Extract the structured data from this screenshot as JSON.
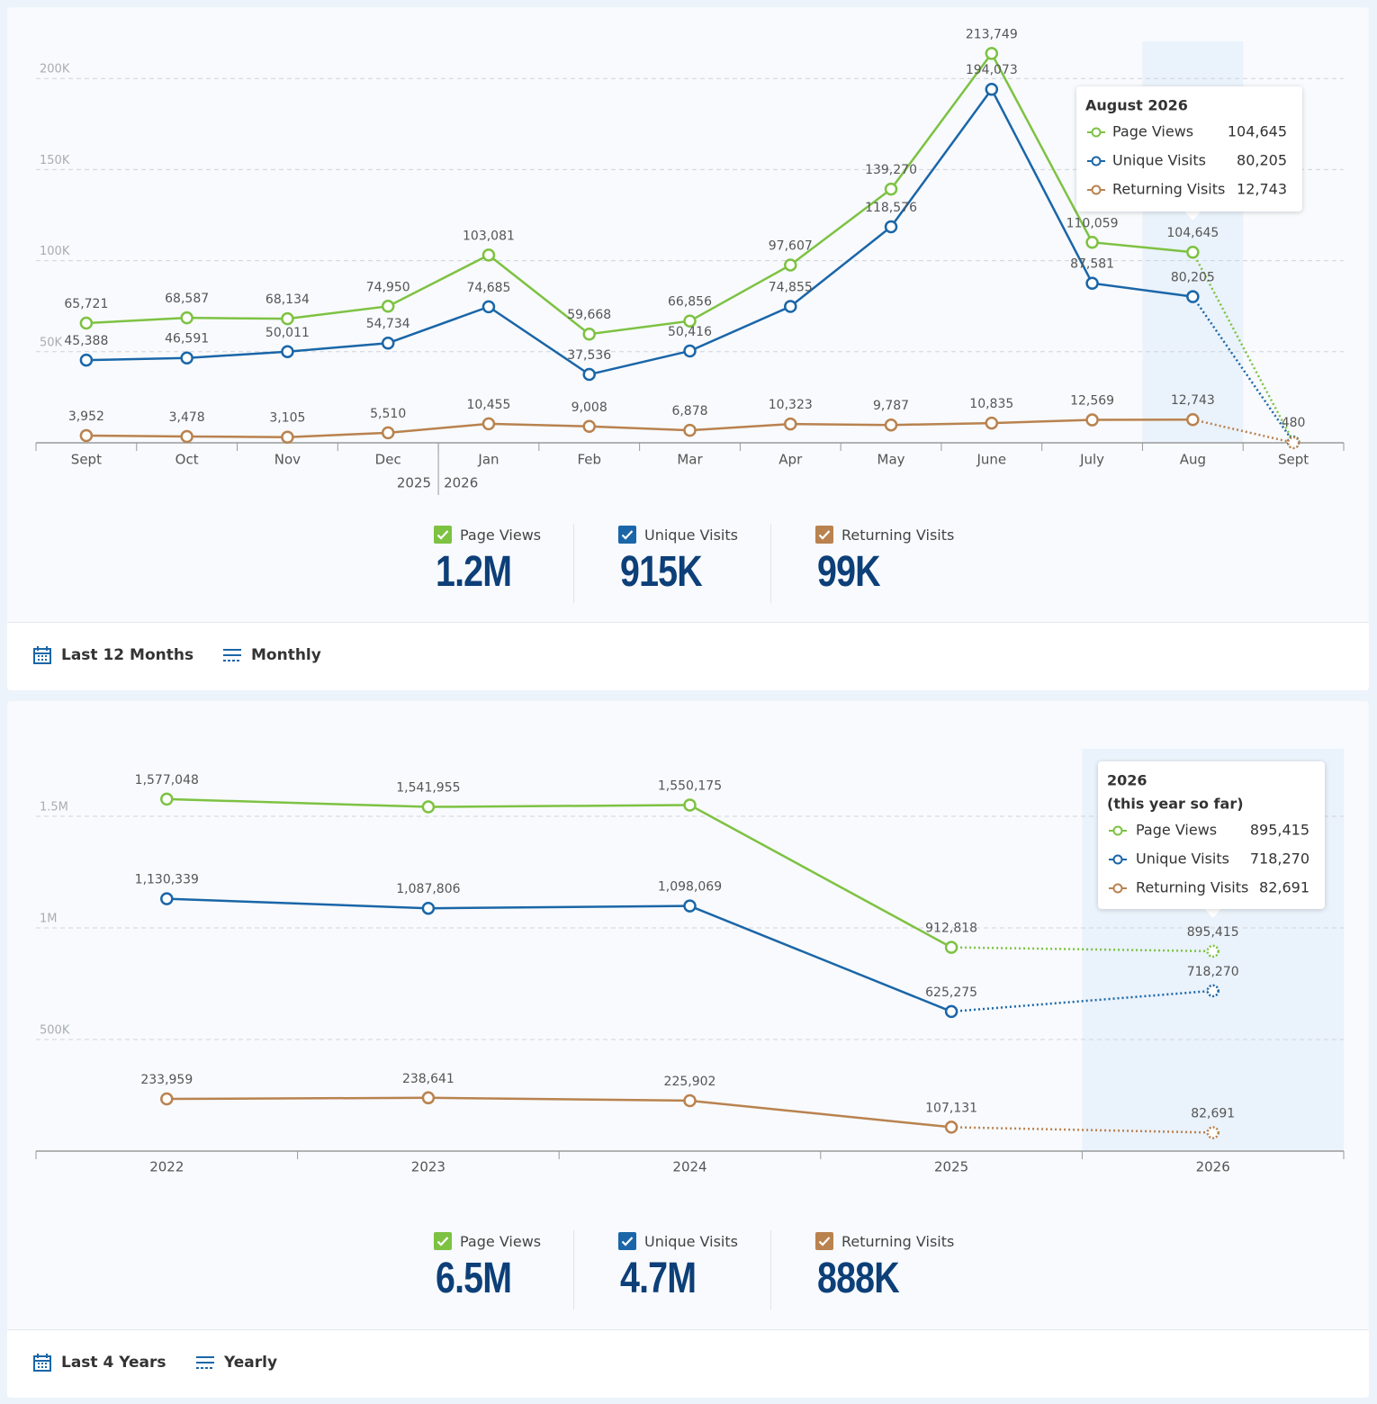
{
  "chart_data": [
    {
      "type": "line",
      "categories": [
        "Sept",
        "Oct",
        "Nov",
        "Dec",
        "Jan",
        "Feb",
        "Mar",
        "Apr",
        "May",
        "June",
        "July",
        "Aug",
        "Sept"
      ],
      "year_divider": {
        "before": "Jan",
        "labels": [
          "2025",
          "2026"
        ]
      },
      "series": [
        {
          "name": "Page Views",
          "color": "#7dc242",
          "values": [
            65721,
            68587,
            68134,
            74950,
            103081,
            59668,
            66856,
            97607,
            139270,
            213749,
            110059,
            104645,
            480
          ],
          "value_labels": [
            "65,721",
            "68,587",
            "68,134",
            "74,950",
            "103,081",
            "59,668",
            "66,856",
            "97,607",
            "139,270",
            "213,749",
            "110,059",
            "104,645",
            "480"
          ]
        },
        {
          "name": "Unique Visits",
          "color": "#1a66a8",
          "values": [
            45388,
            46591,
            50011,
            54734,
            74685,
            37536,
            50416,
            74855,
            118576,
            194073,
            87581,
            80205,
            380
          ],
          "value_labels": [
            "45,388",
            "46,591",
            "50,011",
            "54,734",
            "74,685",
            "37,536",
            "50,416",
            "74,855",
            "118,576",
            "194,073",
            "87,581",
            "80,205",
            null
          ]
        },
        {
          "name": "Returning Visits",
          "color": "#b9824f",
          "values": [
            3952,
            3478,
            3105,
            5510,
            10455,
            9008,
            6878,
            10323,
            9787,
            10835,
            12569,
            12743,
            60
          ],
          "value_labels": [
            "3,952",
            "3,478",
            "3,105",
            "5,510",
            "10,455",
            "9,008",
            "6,878",
            "10,323",
            "9,787",
            "10,835",
            "12,569",
            "12,743",
            null
          ]
        }
      ],
      "ylim": [
        0,
        230000
      ],
      "yticks": [
        {
          "value": 50000,
          "label": "50K"
        },
        {
          "value": 100000,
          "label": "100K"
        },
        {
          "value": 150000,
          "label": "150K"
        },
        {
          "value": 200000,
          "label": "200K"
        }
      ],
      "grid": true,
      "partial_last": true,
      "highlight_index": 11,
      "tooltip": {
        "title": "August 2026"
      },
      "totals": [
        "1.2M",
        "915K",
        "99K"
      ],
      "range": "Last 12 Months",
      "interval": "Monthly"
    },
    {
      "type": "line",
      "categories": [
        "2022",
        "2023",
        "2024",
        "2025",
        "2026"
      ],
      "series": [
        {
          "name": "Page Views",
          "color": "#7dc242",
          "values": [
            1577048,
            1541955,
            1550175,
            912818,
            895415
          ],
          "value_labels": [
            "1,577,048",
            "1,541,955",
            "1,550,175",
            "912,818",
            "895,415"
          ]
        },
        {
          "name": "Unique Visits",
          "color": "#1a66a8",
          "values": [
            1130339,
            1087806,
            1098069,
            625275,
            718270
          ],
          "value_labels": [
            "1,130,339",
            "1,087,806",
            "1,098,069",
            "625,275",
            "718,270"
          ]
        },
        {
          "name": "Returning Visits",
          "color": "#b9824f",
          "values": [
            233959,
            238641,
            225902,
            107131,
            82691
          ],
          "value_labels": [
            "233,959",
            "238,641",
            "225,902",
            "107,131",
            "82,691"
          ]
        }
      ],
      "ylim": [
        0,
        1770000
      ],
      "yticks": [
        {
          "value": 500000,
          "label": "500K"
        },
        {
          "value": 1000000,
          "label": "1M"
        },
        {
          "value": 1500000,
          "label": "1.5M"
        }
      ],
      "grid": true,
      "partial_last": true,
      "highlight_index": 4,
      "tooltip": {
        "title": "2026",
        "subtitle": "(this year so far)"
      },
      "totals": [
        "6.5M",
        "4.7M",
        "888K"
      ],
      "range": "Last 4 Years",
      "interval": "Yearly"
    }
  ]
}
